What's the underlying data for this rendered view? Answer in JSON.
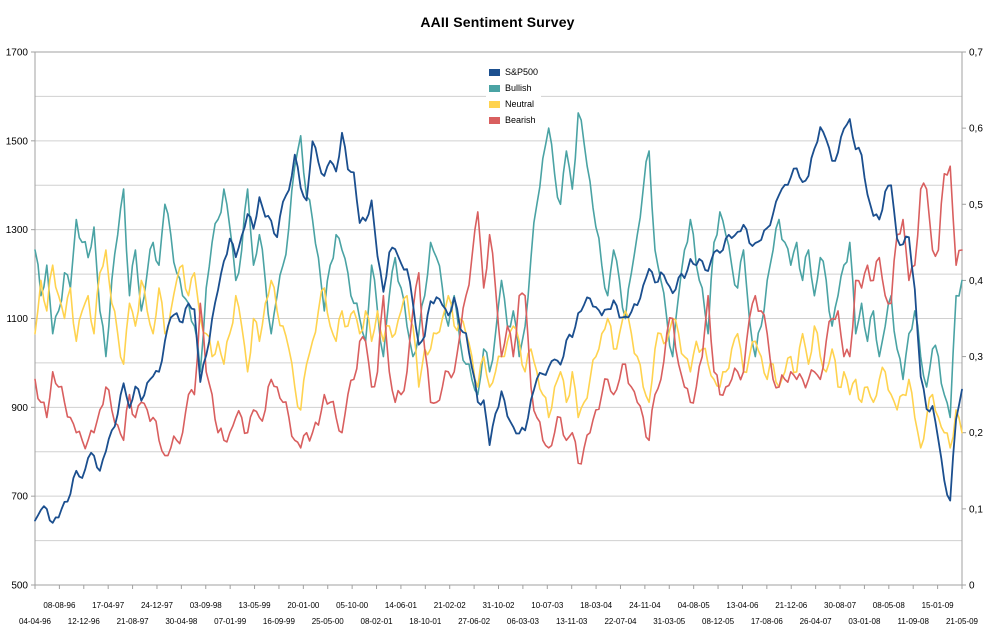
{
  "chart_data": {
    "type": "line",
    "title": "AAII Sentiment Survey",
    "legend_position": "top-center-inside",
    "grid": true,
    "left_axis": {
      "min": 500,
      "max": 1700,
      "gridline_step": 100,
      "ticks": [
        "1700",
        "1500",
        "1300",
        "1100",
        "900",
        "700",
        "500"
      ]
    },
    "right_axis": {
      "min": 0,
      "max": 0.7,
      "ticks": [
        "0,7",
        "0,6",
        "0,5",
        "0,4",
        "0,3",
        "0,2",
        "0,1",
        "0"
      ]
    },
    "x_ticks": [
      "04-04-96",
      "08-08-96",
      "12-12-96",
      "17-04-97",
      "21-08-97",
      "24-12-97",
      "30-04-98",
      "03-09-98",
      "07-01-99",
      "13-05-99",
      "16-09-99",
      "20-01-00",
      "25-05-00",
      "05-10-00",
      "08-02-01",
      "14-06-01",
      "18-10-01",
      "21-02-02",
      "27-06-02",
      "31-10-02",
      "06-03-03",
      "10-07-03",
      "13-11-03",
      "18-03-04",
      "22-07-04",
      "24-11-04",
      "31-03-05",
      "04-08-05",
      "08-12-05",
      "13-04-06",
      "17-08-06",
      "21-12-06",
      "26-04-07",
      "30-08-07",
      "03-01-08",
      "08-05-08",
      "11-09-08",
      "15-01-09",
      "21-05-09"
    ],
    "series": [
      {
        "name": "S&P500",
        "color": "#1b4f8f",
        "axis": "left",
        "values": [
          645,
          669,
          671,
          640,
          652,
          687,
          705,
          757,
          741,
          786,
          791,
          757,
          801,
          848,
          885,
          954,
          899,
          947,
          915,
          955,
          970,
          980,
          1049,
          1102,
          1112,
          1091,
          1134,
          1121,
          957,
          1017,
          1099,
          1164,
          1229,
          1280,
          1238,
          1286,
          1335,
          1302,
          1373,
          1329,
          1320,
          1283,
          1363,
          1389,
          1469,
          1394,
          1366,
          1499,
          1452,
          1421,
          1455,
          1431,
          1518,
          1436,
          1429,
          1315,
          1320,
          1366,
          1240,
          1160,
          1249,
          1256,
          1224,
          1211,
          1134,
          1041,
          1060,
          1139,
          1148,
          1130,
          1107,
          1147,
          1077,
          1067,
          990,
          912,
          916,
          815,
          886,
          936,
          880,
          856,
          841,
          848,
          917,
          964,
          975,
          990,
          1008,
          996,
          1051,
          1058,
          1112,
          1131,
          1145,
          1126,
          1107,
          1121,
          1141,
          1102,
          1104,
          1115,
          1130,
          1174,
          1212,
          1181,
          1204,
          1181,
          1157,
          1192,
          1191,
          1234,
          1220,
          1229,
          1207,
          1249,
          1248,
          1280,
          1281,
          1295,
          1311,
          1270,
          1270,
          1277,
          1304,
          1336,
          1378,
          1401,
          1418,
          1438,
          1407,
          1421,
          1482,
          1531,
          1503,
          1455,
          1474,
          1527,
          1549,
          1481,
          1468,
          1379,
          1331,
          1323,
          1386,
          1400,
          1280,
          1267,
          1283,
          1166,
          969,
          896,
          903,
          826,
          735,
          690,
          873,
          940
        ]
      },
      {
        "name": "Bullish",
        "color": "#4aa3a4",
        "axis": "right",
        "values": [
          0.44,
          0.38,
          0.42,
          0.33,
          0.36,
          0.41,
          0.39,
          0.48,
          0.45,
          0.43,
          0.47,
          0.36,
          0.3,
          0.4,
          0.46,
          0.52,
          0.38,
          0.44,
          0.36,
          0.41,
          0.45,
          0.42,
          0.5,
          0.46,
          0.41,
          0.38,
          0.37,
          0.34,
          0.28,
          0.39,
          0.45,
          0.48,
          0.52,
          0.47,
          0.4,
          0.44,
          0.52,
          0.42,
          0.46,
          0.4,
          0.33,
          0.38,
          0.42,
          0.47,
          0.55,
          0.59,
          0.51,
          0.48,
          0.43,
          0.36,
          0.42,
          0.46,
          0.44,
          0.41,
          0.37,
          0.35,
          0.32,
          0.42,
          0.36,
          0.3,
          0.38,
          0.43,
          0.39,
          0.34,
          0.3,
          0.33,
          0.38,
          0.45,
          0.43,
          0.39,
          0.34,
          0.38,
          0.32,
          0.29,
          0.27,
          0.25,
          0.31,
          0.28,
          0.33,
          0.4,
          0.34,
          0.36,
          0.3,
          0.34,
          0.43,
          0.5,
          0.56,
          0.6,
          0.54,
          0.5,
          0.57,
          0.52,
          0.62,
          0.58,
          0.53,
          0.47,
          0.42,
          0.38,
          0.44,
          0.4,
          0.35,
          0.41,
          0.46,
          0.52,
          0.57,
          0.44,
          0.4,
          0.35,
          0.3,
          0.38,
          0.44,
          0.48,
          0.42,
          0.39,
          0.33,
          0.45,
          0.49,
          0.46,
          0.42,
          0.39,
          0.44,
          0.35,
          0.3,
          0.34,
          0.4,
          0.44,
          0.48,
          0.45,
          0.42,
          0.45,
          0.4,
          0.44,
          0.38,
          0.43,
          0.4,
          0.34,
          0.38,
          0.42,
          0.45,
          0.33,
          0.37,
          0.32,
          0.36,
          0.3,
          0.34,
          0.38,
          0.31,
          0.27,
          0.33,
          0.36,
          0.3,
          0.26,
          0.31,
          0.3,
          0.25,
          0.22,
          0.38,
          0.4
        ]
      },
      {
        "name": "Neutral",
        "color": "#ffd34f",
        "axis": "right",
        "values": [
          0.33,
          0.4,
          0.36,
          0.42,
          0.38,
          0.35,
          0.39,
          0.32,
          0.36,
          0.38,
          0.33,
          0.41,
          0.44,
          0.37,
          0.33,
          0.29,
          0.37,
          0.34,
          0.4,
          0.36,
          0.33,
          0.39,
          0.33,
          0.36,
          0.4,
          0.42,
          0.38,
          0.41,
          0.35,
          0.33,
          0.3,
          0.32,
          0.29,
          0.33,
          0.38,
          0.34,
          0.28,
          0.35,
          0.32,
          0.37,
          0.4,
          0.36,
          0.34,
          0.31,
          0.26,
          0.23,
          0.29,
          0.32,
          0.36,
          0.39,
          0.34,
          0.32,
          0.36,
          0.34,
          0.36,
          0.33,
          0.36,
          0.32,
          0.36,
          0.32,
          0.34,
          0.33,
          0.36,
          0.38,
          0.34,
          0.26,
          0.31,
          0.31,
          0.33,
          0.35,
          0.38,
          0.34,
          0.35,
          0.33,
          0.3,
          0.26,
          0.3,
          0.26,
          0.28,
          0.3,
          0.32,
          0.34,
          0.32,
          0.28,
          0.31,
          0.28,
          0.25,
          0.22,
          0.26,
          0.28,
          0.24,
          0.28,
          0.22,
          0.24,
          0.27,
          0.3,
          0.33,
          0.35,
          0.31,
          0.33,
          0.36,
          0.33,
          0.3,
          0.26,
          0.24,
          0.31,
          0.33,
          0.32,
          0.35,
          0.33,
          0.3,
          0.28,
          0.32,
          0.31,
          0.29,
          0.27,
          0.26,
          0.28,
          0.31,
          0.33,
          0.28,
          0.3,
          0.32,
          0.3,
          0.27,
          0.29,
          0.26,
          0.28,
          0.3,
          0.28,
          0.33,
          0.29,
          0.34,
          0.3,
          0.28,
          0.31,
          0.26,
          0.28,
          0.25,
          0.27,
          0.24,
          0.26,
          0.24,
          0.27,
          0.28,
          0.25,
          0.23,
          0.25,
          0.27,
          0.22,
          0.18,
          0.22,
          0.25,
          0.22,
          0.2,
          0.18,
          0.23,
          0.2
        ]
      },
      {
        "name": "Bearish",
        "color": "#d95f5f",
        "axis": "right",
        "values": [
          0.27,
          0.24,
          0.22,
          0.28,
          0.26,
          0.24,
          0.22,
          0.2,
          0.19,
          0.19,
          0.2,
          0.23,
          0.26,
          0.23,
          0.21,
          0.19,
          0.25,
          0.22,
          0.24,
          0.23,
          0.22,
          0.19,
          0.17,
          0.18,
          0.19,
          0.2,
          0.25,
          0.25,
          0.37,
          0.28,
          0.25,
          0.2,
          0.19,
          0.2,
          0.22,
          0.22,
          0.2,
          0.23,
          0.22,
          0.23,
          0.27,
          0.26,
          0.24,
          0.22,
          0.19,
          0.18,
          0.2,
          0.2,
          0.21,
          0.25,
          0.24,
          0.22,
          0.2,
          0.25,
          0.27,
          0.32,
          0.32,
          0.26,
          0.28,
          0.38,
          0.28,
          0.24,
          0.25,
          0.28,
          0.36,
          0.41,
          0.31,
          0.24,
          0.24,
          0.26,
          0.28,
          0.28,
          0.33,
          0.38,
          0.43,
          0.49,
          0.39,
          0.46,
          0.39,
          0.3,
          0.34,
          0.3,
          0.38,
          0.38,
          0.26,
          0.22,
          0.19,
          0.18,
          0.2,
          0.22,
          0.19,
          0.2,
          0.16,
          0.18,
          0.2,
          0.23,
          0.25,
          0.27,
          0.25,
          0.27,
          0.29,
          0.26,
          0.24,
          0.22,
          0.19,
          0.25,
          0.27,
          0.33,
          0.35,
          0.29,
          0.26,
          0.24,
          0.26,
          0.3,
          0.38,
          0.28,
          0.25,
          0.26,
          0.27,
          0.28,
          0.28,
          0.35,
          0.38,
          0.36,
          0.33,
          0.27,
          0.26,
          0.27,
          0.28,
          0.27,
          0.27,
          0.27,
          0.28,
          0.27,
          0.32,
          0.35,
          0.36,
          0.3,
          0.3,
          0.4,
          0.39,
          0.42,
          0.4,
          0.43,
          0.38,
          0.37,
          0.46,
          0.48,
          0.4,
          0.42,
          0.52,
          0.52,
          0.44,
          0.44,
          0.54,
          0.55,
          0.42,
          0.44
        ]
      }
    ]
  }
}
